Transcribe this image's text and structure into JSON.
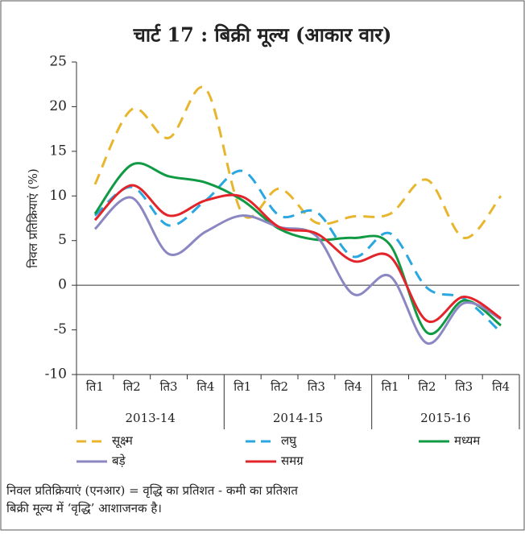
{
  "chart_data": {
    "type": "line",
    "title": "चार्ट 17 : बिक्री मूल्य (आकार वार)",
    "y_label": "निवल प्रतिक्रियाएं (%)",
    "categories": [
      "ति1",
      "ति2",
      "ति3",
      "ति4",
      "ति1",
      "ति2",
      "ति3",
      "ति4",
      "ति1",
      "ति2",
      "ति3",
      "ति4"
    ],
    "groups": [
      "2013-14",
      "2014-15",
      "2015-16"
    ],
    "ylim": [
      -10,
      25
    ],
    "yticks": [
      -10,
      -5,
      0,
      5,
      10,
      15,
      20,
      25
    ],
    "series": [
      {
        "name": "सूक्ष्म",
        "color": "#e8b62e",
        "dashed": true,
        "values": [
          11.3,
          19.7,
          16.5,
          22,
          8,
          10.8,
          7,
          7.7,
          8,
          11.8,
          5.3,
          10
        ]
      },
      {
        "name": "लघु",
        "color": "#2aa7e0",
        "dashed": true,
        "values": [
          7.8,
          11,
          6.7,
          9.5,
          12.8,
          7.8,
          8.2,
          3.2,
          5.8,
          -0.3,
          -1.5,
          -5.3
        ]
      },
      {
        "name": "मध्यम",
        "color": "#109a44",
        "dashed": false,
        "values": [
          8,
          13.5,
          12.2,
          11.5,
          9.5,
          6.3,
          5.1,
          5.3,
          4.5,
          -5.3,
          -1.7,
          -4.5
        ]
      },
      {
        "name": "बड़े",
        "color": "#8b87c2",
        "dashed": false,
        "values": [
          6.3,
          9.8,
          3.5,
          6,
          7.8,
          6.5,
          5.5,
          -1,
          1,
          -6.5,
          -2,
          -3.8
        ]
      },
      {
        "name": "समग्र",
        "color": "#e3242b",
        "dashed": false,
        "values": [
          7.3,
          11.2,
          7.8,
          9.5,
          9.9,
          6.5,
          5.8,
          2.7,
          3.2,
          -4,
          -1.3,
          -3.7
        ]
      }
    ],
    "notes": [
      "निवल प्रतिक्रियाएं (एनआर) = वृद्धि का प्रतिशत - कमी का प्रतिशत",
      "बिक्री मूल्य में ‘वृद्धि’ आशाजनक है।"
    ]
  }
}
